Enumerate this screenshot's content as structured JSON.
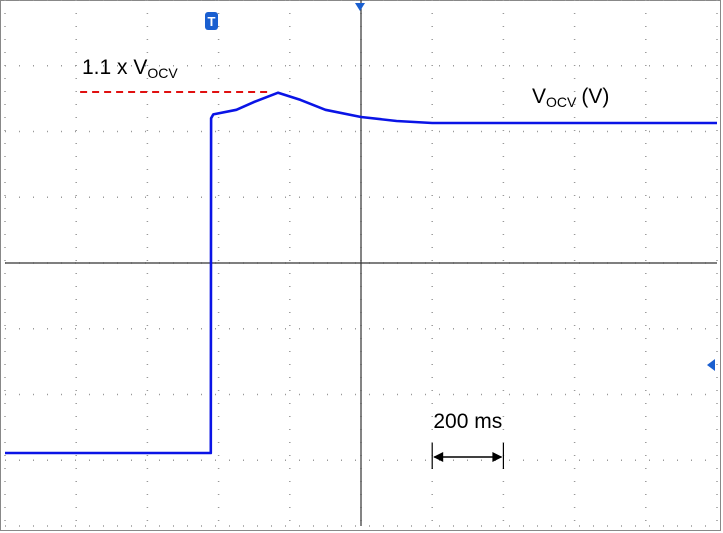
{
  "chart_data": {
    "type": "line",
    "x": [
      0,
      578,
      579,
      585,
      650,
      700,
      767,
      830,
      900,
      1000,
      1100,
      1200,
      1400,
      2000
    ],
    "series": [
      {
        "color": "#0a14e6",
        "values": [
          1.11,
          1.11,
          6.2,
          6.26,
          6.33,
          6.45,
          6.59,
          6.48,
          6.33,
          6.22,
          6.16,
          6.13,
          6.13,
          6.13
        ]
      }
    ],
    "xlim": [
      0,
      2000
    ],
    "ylim": [
      0,
      8
    ],
    "xticks": [
      0,
      200,
      400,
      600,
      800,
      1000,
      1200,
      1400,
      1600,
      1800,
      2000
    ],
    "yticks": [
      0,
      1,
      2,
      3,
      4,
      5,
      6,
      7,
      8
    ],
    "grid": true,
    "reference": {
      "value": 6.6,
      "x": [
        211,
        744
      ],
      "color": "#e01010"
    },
    "annotations": [
      {
        "parts": [
          "1.1 x V",
          "OCV"
        ]
      },
      {
        "parts": [
          "V",
          "OCV",
          "(V)"
        ]
      }
    ],
    "scale_bar": {
      "label": "200 ms",
      "start": 1200,
      "length": 200
    }
  }
}
